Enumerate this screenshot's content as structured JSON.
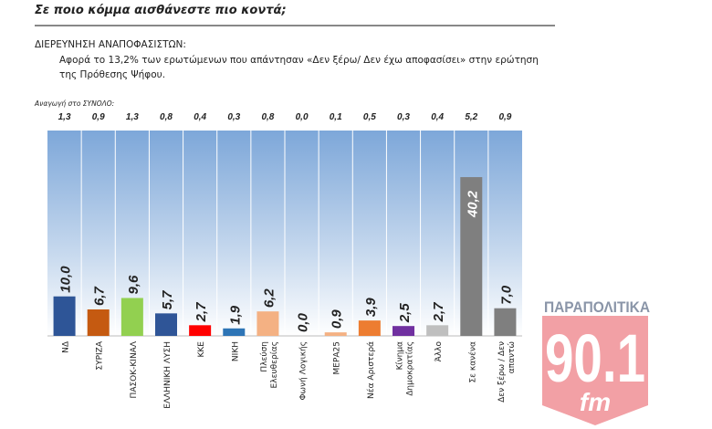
{
  "title": "Σε ποιο κόμμα αισθάνεστε πιο κοντά;",
  "subtitle": "ΔΙΕΡΕΥΝΗΣΗ ΑΝΑΠΟΦΑΣΙΣΤΩΝ:",
  "description": "Αφορά το 13,2% των ερωτώμενων που απάντησαν «Δεν ξέρω/ Δεν έχω αποφασίσει» στην ερώτηση της Πρόθεσης Ψήφου.",
  "reduction_label": "Αναγωγή στο ΣΥΝΟΛΟ:",
  "logo": {
    "brand": "ΠΑΡΑΠΟΛΙΤΙΚΑ",
    "freq": "90.1",
    "band": "fm"
  },
  "chart_data": {
    "type": "bar",
    "categories": [
      "ΝΔ",
      "ΣΥΡΙΖΑ",
      "ΠΑΣΟΚ-ΚΙΝΑΛ",
      "ΕΛΛΗΝΙΚΗ ΛΥΣΗ",
      "ΚΚΕ",
      "ΝΙΚΗ",
      "Πλεύση Ελευθερίας",
      "Φωνή Λογικής",
      "ΜΕΡΑ25",
      "Νέα Αριστερά",
      "Κίνημα Δημοκρατίας",
      "Άλλο",
      "Σε κανένα",
      "Δεν ξέρω / Δεν απαντώ"
    ],
    "values": [
      10.0,
      6.7,
      9.6,
      5.7,
      2.7,
      1.9,
      6.2,
      0.0,
      0.9,
      3.9,
      2.5,
      2.7,
      40.2,
      7.0
    ],
    "value_labels": [
      "10,0",
      "6,7",
      "9,6",
      "5,7",
      "2,7",
      "1,9",
      "6,2",
      "0,0",
      "0,9",
      "3,9",
      "2,5",
      "2,7",
      "40,2",
      "7,0"
    ],
    "total_reduction": [
      "1,3",
      "0,9",
      "1,3",
      "0,8",
      "0,4",
      "0,3",
      "0,8",
      "0,0",
      "0,1",
      "0,5",
      "0,3",
      "0,4",
      "5,2",
      "0,9"
    ],
    "colors": [
      "#2e5597",
      "#c55a11",
      "#92d050",
      "#2f5597",
      "#ff0000",
      "#2e75b6",
      "#f4b183",
      "#f4b183",
      "#f4b183",
      "#ed7d31",
      "#7030a0",
      "#bfbfbf",
      "#7f7f7f",
      "#7f7f7f"
    ],
    "ylim": [
      0,
      52
    ],
    "grid": false
  }
}
